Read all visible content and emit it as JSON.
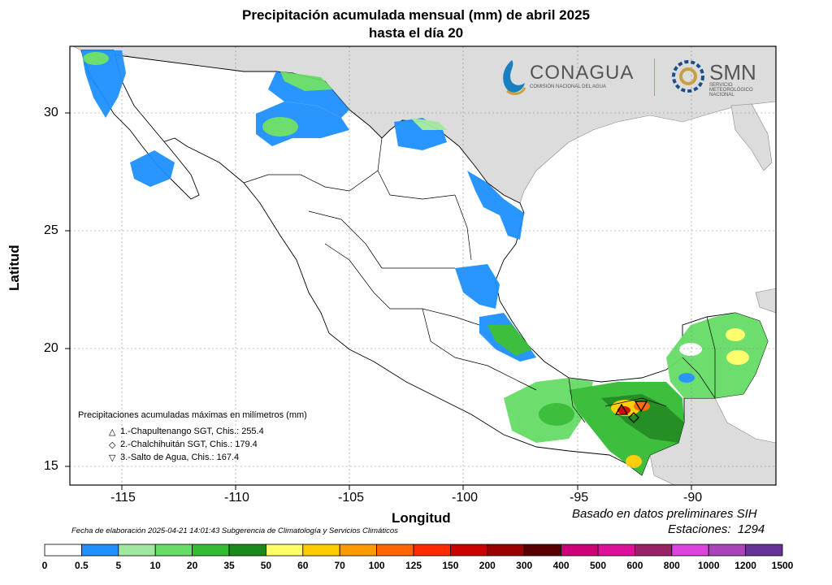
{
  "title": {
    "line1": "Precipitación acumulada mensual (mm) de abril 2025",
    "line2": "hasta el día 20"
  },
  "axes": {
    "xlabel": "Longitud",
    "ylabel": "Latitud",
    "x_ticks": [
      "-115",
      "-110",
      "-105",
      "-100",
      "-95",
      "-90"
    ],
    "y_ticks": [
      "30",
      "25",
      "20",
      "15"
    ]
  },
  "logos": {
    "conagua_name": "CONAGUA",
    "conagua_sub": "COMISIÓN NACIONAL DEL AGUA",
    "smn_name": "SMN",
    "smn_sub1": "SERVICIO",
    "smn_sub2": "METEOROLÓGICO",
    "smn_sub3": "NACIONAL"
  },
  "max_legend": {
    "title": "Precipitaciones acumuladas máximas en milímetros (mm)",
    "items": [
      {
        "symbol": "△",
        "text": "1.-Chapultenango SGT, Chis.: 255.4"
      },
      {
        "symbol": "◇",
        "text": "2.-Chalchihuitán SGT, Chis.: 179.4"
      },
      {
        "symbol": "▽",
        "text": "3.-Salto de Agua, Chis.: 167.4"
      }
    ]
  },
  "footer": {
    "elaboration": "Fecha de elaboración 2025-04-21 14:01:43 Subgerencia de Climatología y Servicios Climáticos",
    "basis": "Basado en datos preliminares SIH",
    "stations_label": "Estaciones:",
    "stations_value": "1294"
  },
  "colorbar": {
    "labels": [
      "0",
      "0.5",
      "5",
      "10",
      "20",
      "35",
      "50",
      "60",
      "70",
      "100",
      "125",
      "150",
      "200",
      "300",
      "400",
      "500",
      "600",
      "800",
      "1000",
      "1200",
      "1500"
    ],
    "colors": [
      "#ffffff",
      "#1e90ff",
      "#a0e8a0",
      "#66dd66",
      "#33bb33",
      "#1a8a1a",
      "#ffff66",
      "#ffcc00",
      "#ff9900",
      "#ff6600",
      "#ff2a00",
      "#cc0000",
      "#990000",
      "#5a0000",
      "#cc0077",
      "#dd1199",
      "#992266",
      "#dd44dd",
      "#aa44bb",
      "#663399"
    ]
  }
}
